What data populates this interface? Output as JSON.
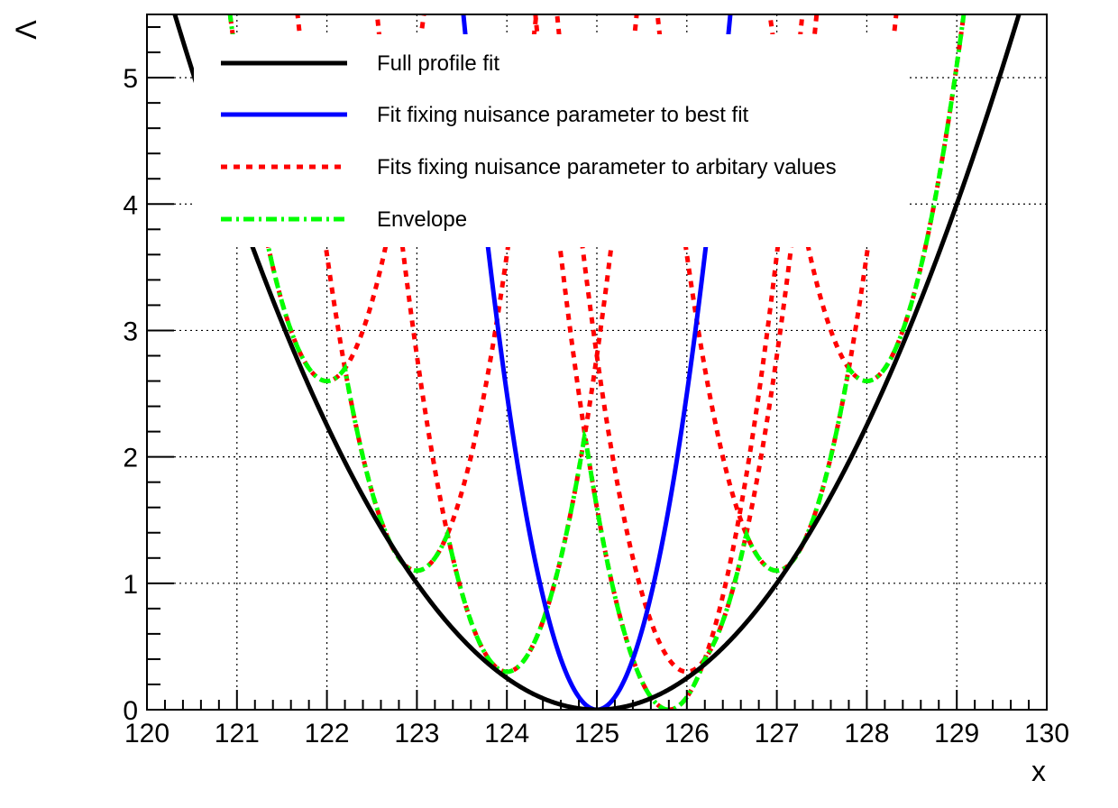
{
  "chart_data": {
    "type": "line",
    "title": "",
    "xlabel": "x",
    "ylabel": "Λ",
    "xlim": [
      120,
      130
    ],
    "ylim": [
      0,
      5.5
    ],
    "x_ticks": [
      120,
      121,
      122,
      123,
      124,
      125,
      126,
      127,
      128,
      129,
      130
    ],
    "y_ticks": [
      0,
      1,
      2,
      3,
      4,
      5
    ],
    "grid": true,
    "legend_position": "top",
    "legend": [
      {
        "label": "Full profile fit",
        "color": "#000000",
        "style": "solid"
      },
      {
        "label": "Fit fixing nuisance parameter to best fit",
        "color": "#0000ff",
        "style": "solid"
      },
      {
        "label": "Fits fixing nuisance parameter to arbitary values",
        "color": "#ff0000",
        "style": "dotted"
      },
      {
        "label": "Envelope",
        "color": "#00ff00",
        "style": "dash-dot"
      }
    ],
    "series": [
      {
        "name": "Full profile fit",
        "color": "#000000",
        "style": "solid",
        "function": {
          "kind": "parabola",
          "center": 125,
          "scale": 0.25,
          "offset": 0
        }
      },
      {
        "name": "Fit fixing nuisance parameter to best fit",
        "color": "#0000ff",
        "style": "solid",
        "function": {
          "kind": "parabola",
          "center": 125,
          "scale": 2.5,
          "offset": 0
        }
      },
      {
        "name": "Fits fixing nuisance parameter to arbitary values",
        "color": "#ff0000",
        "style": "dotted",
        "minima": [
          {
            "x": 122,
            "y": 2.6
          },
          {
            "x": 123,
            "y": 1.1
          },
          {
            "x": 124,
            "y": 0.3
          },
          {
            "x": 125.8,
            "y": 0
          },
          {
            "x": 126,
            "y": 0.3
          },
          {
            "x": 127,
            "y": 1.1
          },
          {
            "x": 128,
            "y": 2.6
          }
        ]
      },
      {
        "name": "Envelope",
        "color": "#00ff00",
        "style": "dash-dot",
        "function": {
          "kind": "min_of_dotted"
        }
      }
    ]
  }
}
